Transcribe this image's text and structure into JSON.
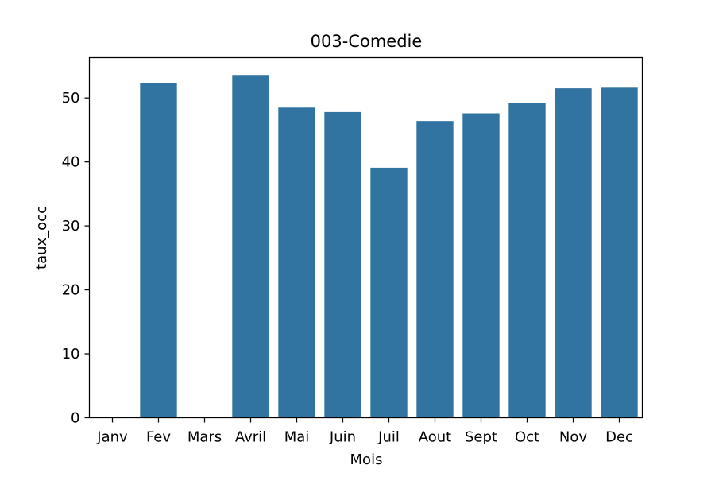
{
  "chart_data": {
    "type": "bar",
    "title": "003-Comedie",
    "xlabel": "Mois",
    "ylabel": "taux_occ",
    "categories": [
      "Janv",
      "Fev",
      "Mars",
      "Avril",
      "Mai",
      "Juin",
      "Juil",
      "Aout",
      "Sept",
      "Oct",
      "Nov",
      "Dec"
    ],
    "values": [
      null,
      52.3,
      null,
      53.6,
      48.5,
      47.8,
      39.1,
      46.4,
      47.6,
      49.2,
      51.5,
      51.6
    ],
    "yticks": [
      0,
      10,
      20,
      30,
      40,
      50
    ],
    "ylim": [
      0,
      56.3
    ],
    "grid": false,
    "legend": "none",
    "bar_color": "#3274a1"
  }
}
